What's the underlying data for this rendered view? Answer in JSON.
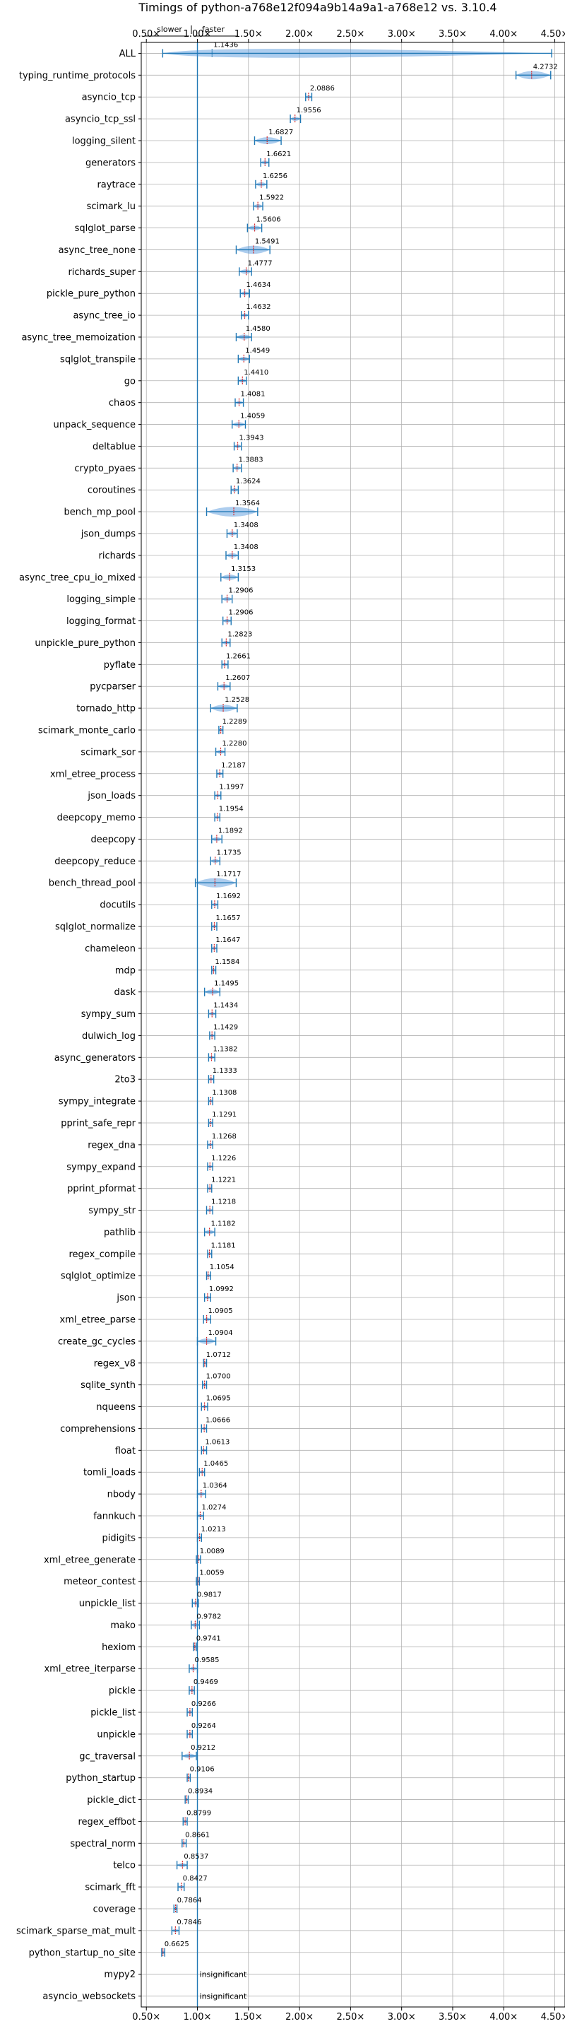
{
  "chart_data": {
    "type": "violin",
    "title": "Timings of python-a768e12f094a9b14a9a1-a768e12 vs. 3.10.4",
    "annotation_left": "slower",
    "annotation_right": "faster",
    "xlim": [
      0.45,
      4.6
    ],
    "x_ticks": [
      "0.50×",
      "1.00×",
      "1.50×",
      "2.00×",
      "2.50×",
      "3.00×",
      "3.50×",
      "4.00×",
      "4.50×"
    ],
    "grid": true,
    "colors": {
      "violin": "#4a90d9",
      "line": "#1f77b4",
      "median": "#d62728"
    },
    "benchmarks": [
      {
        "name": "ALL",
        "value": 1.1436,
        "label": "1.1436"
      },
      {
        "name": "typing_runtime_protocols",
        "value": 4.2732,
        "label": "4.2732"
      },
      {
        "name": "asyncio_tcp",
        "value": 2.0886,
        "label": "2.0886"
      },
      {
        "name": "asyncio_tcp_ssl",
        "value": 1.9556,
        "label": "1.9556"
      },
      {
        "name": "logging_silent",
        "value": 1.6827,
        "label": "1.6827"
      },
      {
        "name": "generators",
        "value": 1.6621,
        "label": "1.6621"
      },
      {
        "name": "raytrace",
        "value": 1.6256,
        "label": "1.6256"
      },
      {
        "name": "scimark_lu",
        "value": 1.5922,
        "label": "1.5922"
      },
      {
        "name": "sqlglot_parse",
        "value": 1.5606,
        "label": "1.5606"
      },
      {
        "name": "async_tree_none",
        "value": 1.5491,
        "label": "1.5491"
      },
      {
        "name": "richards_super",
        "value": 1.4777,
        "label": "1.4777"
      },
      {
        "name": "pickle_pure_python",
        "value": 1.4634,
        "label": "1.4634"
      },
      {
        "name": "async_tree_io",
        "value": 1.4632,
        "label": "1.4632"
      },
      {
        "name": "async_tree_memoization",
        "value": 1.458,
        "label": "1.4580"
      },
      {
        "name": "sqlglot_transpile",
        "value": 1.4549,
        "label": "1.4549"
      },
      {
        "name": "go",
        "value": 1.441,
        "label": "1.4410"
      },
      {
        "name": "chaos",
        "value": 1.4081,
        "label": "1.4081"
      },
      {
        "name": "unpack_sequence",
        "value": 1.4059,
        "label": "1.4059"
      },
      {
        "name": "deltablue",
        "value": 1.3943,
        "label": "1.3943"
      },
      {
        "name": "crypto_pyaes",
        "value": 1.3883,
        "label": "1.3883"
      },
      {
        "name": "coroutines",
        "value": 1.3624,
        "label": "1.3624"
      },
      {
        "name": "bench_mp_pool",
        "value": 1.3564,
        "label": "1.3564"
      },
      {
        "name": "json_dumps",
        "value": 1.3408,
        "label": "1.3408"
      },
      {
        "name": "richards",
        "value": 1.3408,
        "label": "1.3408"
      },
      {
        "name": "async_tree_cpu_io_mixed",
        "value": 1.3153,
        "label": "1.3153"
      },
      {
        "name": "logging_simple",
        "value": 1.2906,
        "label": "1.2906"
      },
      {
        "name": "logging_format",
        "value": 1.2906,
        "label": "1.2906"
      },
      {
        "name": "unpickle_pure_python",
        "value": 1.2823,
        "label": "1.2823"
      },
      {
        "name": "pyflate",
        "value": 1.2661,
        "label": "1.2661"
      },
      {
        "name": "pycparser",
        "value": 1.2607,
        "label": "1.2607"
      },
      {
        "name": "tornado_http",
        "value": 1.2528,
        "label": "1.2528"
      },
      {
        "name": "scimark_monte_carlo",
        "value": 1.2289,
        "label": "1.2289"
      },
      {
        "name": "scimark_sor",
        "value": 1.228,
        "label": "1.2280"
      },
      {
        "name": "xml_etree_process",
        "value": 1.2187,
        "label": "1.2187"
      },
      {
        "name": "json_loads",
        "value": 1.1997,
        "label": "1.1997"
      },
      {
        "name": "deepcopy_memo",
        "value": 1.1954,
        "label": "1.1954"
      },
      {
        "name": "deepcopy",
        "value": 1.1892,
        "label": "1.1892"
      },
      {
        "name": "deepcopy_reduce",
        "value": 1.1735,
        "label": "1.1735"
      },
      {
        "name": "bench_thread_pool",
        "value": 1.1717,
        "label": "1.1717"
      },
      {
        "name": "docutils",
        "value": 1.1692,
        "label": "1.1692"
      },
      {
        "name": "sqlglot_normalize",
        "value": 1.1657,
        "label": "1.1657"
      },
      {
        "name": "chameleon",
        "value": 1.1647,
        "label": "1.1647"
      },
      {
        "name": "mdp",
        "value": 1.1584,
        "label": "1.1584"
      },
      {
        "name": "dask",
        "value": 1.1495,
        "label": "1.1495"
      },
      {
        "name": "sympy_sum",
        "value": 1.1434,
        "label": "1.1434"
      },
      {
        "name": "dulwich_log",
        "value": 1.1429,
        "label": "1.1429"
      },
      {
        "name": "async_generators",
        "value": 1.1382,
        "label": "1.1382"
      },
      {
        "name": "2to3",
        "value": 1.1333,
        "label": "1.1333"
      },
      {
        "name": "sympy_integrate",
        "value": 1.1308,
        "label": "1.1308"
      },
      {
        "name": "pprint_safe_repr",
        "value": 1.1291,
        "label": "1.1291"
      },
      {
        "name": "regex_dna",
        "value": 1.1268,
        "label": "1.1268"
      },
      {
        "name": "sympy_expand",
        "value": 1.1226,
        "label": "1.1226"
      },
      {
        "name": "pprint_pformat",
        "value": 1.1221,
        "label": "1.1221"
      },
      {
        "name": "sympy_str",
        "value": 1.1218,
        "label": "1.1218"
      },
      {
        "name": "pathlib",
        "value": 1.1182,
        "label": "1.1182"
      },
      {
        "name": "regex_compile",
        "value": 1.1181,
        "label": "1.1181"
      },
      {
        "name": "sqlglot_optimize",
        "value": 1.1054,
        "label": "1.1054"
      },
      {
        "name": "json",
        "value": 1.0992,
        "label": "1.0992"
      },
      {
        "name": "xml_etree_parse",
        "value": 1.0905,
        "label": "1.0905"
      },
      {
        "name": "create_gc_cycles",
        "value": 1.0904,
        "label": "1.0904"
      },
      {
        "name": "regex_v8",
        "value": 1.0712,
        "label": "1.0712"
      },
      {
        "name": "sqlite_synth",
        "value": 1.07,
        "label": "1.0700"
      },
      {
        "name": "nqueens",
        "value": 1.0695,
        "label": "1.0695"
      },
      {
        "name": "comprehensions",
        "value": 1.0666,
        "label": "1.0666"
      },
      {
        "name": "float",
        "value": 1.0613,
        "label": "1.0613"
      },
      {
        "name": "tomli_loads",
        "value": 1.0465,
        "label": "1.0465"
      },
      {
        "name": "nbody",
        "value": 1.0364,
        "label": "1.0364"
      },
      {
        "name": "fannkuch",
        "value": 1.0274,
        "label": "1.0274"
      },
      {
        "name": "pidigits",
        "value": 1.0213,
        "label": "1.0213"
      },
      {
        "name": "xml_etree_generate",
        "value": 1.0089,
        "label": "1.0089"
      },
      {
        "name": "meteor_contest",
        "value": 1.0059,
        "label": "1.0059"
      },
      {
        "name": "unpickle_list",
        "value": 0.9817,
        "label": "0.9817"
      },
      {
        "name": "mako",
        "value": 0.9782,
        "label": "0.9782"
      },
      {
        "name": "hexiom",
        "value": 0.9741,
        "label": "0.9741"
      },
      {
        "name": "xml_etree_iterparse",
        "value": 0.9585,
        "label": "0.9585"
      },
      {
        "name": "pickle",
        "value": 0.9469,
        "label": "0.9469"
      },
      {
        "name": "pickle_list",
        "value": 0.9266,
        "label": "0.9266"
      },
      {
        "name": "unpickle",
        "value": 0.9264,
        "label": "0.9264"
      },
      {
        "name": "gc_traversal",
        "value": 0.9212,
        "label": "0.9212"
      },
      {
        "name": "python_startup",
        "value": 0.9106,
        "label": "0.9106"
      },
      {
        "name": "pickle_dict",
        "value": 0.8934,
        "label": "0.8934"
      },
      {
        "name": "regex_effbot",
        "value": 0.8799,
        "label": "0.8799"
      },
      {
        "name": "spectral_norm",
        "value": 0.8661,
        "label": "0.8661"
      },
      {
        "name": "telco",
        "value": 0.8537,
        "label": "0.8537"
      },
      {
        "name": "scimark_fft",
        "value": 0.8427,
        "label": "0.8427"
      },
      {
        "name": "coverage",
        "value": 0.7864,
        "label": "0.7864"
      },
      {
        "name": "scimark_sparse_mat_mult",
        "value": 0.7846,
        "label": "0.7846"
      },
      {
        "name": "python_startup_no_site",
        "value": 0.6625,
        "label": "0.6625"
      },
      {
        "name": "mypy2",
        "value": null,
        "label": "insignificant"
      },
      {
        "name": "asyncio_websockets",
        "value": null,
        "label": "insignificant"
      }
    ],
    "ranges": [
      [
        0.66,
        4.47
      ],
      [
        4.12,
        4.46
      ],
      [
        2.06,
        2.12
      ],
      [
        1.91,
        2.01
      ],
      [
        1.56,
        1.82
      ],
      [
        1.62,
        1.7
      ],
      [
        1.57,
        1.68
      ],
      [
        1.55,
        1.64
      ],
      [
        1.49,
        1.63
      ],
      [
        1.38,
        1.71
      ],
      [
        1.41,
        1.53
      ],
      [
        1.42,
        1.51
      ],
      [
        1.43,
        1.5
      ],
      [
        1.38,
        1.53
      ],
      [
        1.4,
        1.51
      ],
      [
        1.4,
        1.48
      ],
      [
        1.37,
        1.45
      ],
      [
        1.34,
        1.47
      ],
      [
        1.36,
        1.43
      ],
      [
        1.35,
        1.43
      ],
      [
        1.33,
        1.4
      ],
      [
        1.09,
        1.59
      ],
      [
        1.29,
        1.39
      ],
      [
        1.28,
        1.4
      ],
      [
        1.23,
        1.4
      ],
      [
        1.24,
        1.34
      ],
      [
        1.25,
        1.33
      ],
      [
        1.24,
        1.32
      ],
      [
        1.24,
        1.3
      ],
      [
        1.2,
        1.32
      ],
      [
        1.13,
        1.39
      ],
      [
        1.21,
        1.25
      ],
      [
        1.18,
        1.27
      ],
      [
        1.19,
        1.25
      ],
      [
        1.17,
        1.23
      ],
      [
        1.17,
        1.22
      ],
      [
        1.14,
        1.24
      ],
      [
        1.13,
        1.22
      ],
      [
        0.98,
        1.38
      ],
      [
        1.14,
        1.2
      ],
      [
        1.14,
        1.19
      ],
      [
        1.14,
        1.19
      ],
      [
        1.14,
        1.18
      ],
      [
        1.07,
        1.22
      ],
      [
        1.11,
        1.18
      ],
      [
        1.12,
        1.17
      ],
      [
        1.11,
        1.17
      ],
      [
        1.11,
        1.16
      ],
      [
        1.11,
        1.15
      ],
      [
        1.11,
        1.15
      ],
      [
        1.1,
        1.15
      ],
      [
        1.1,
        1.15
      ],
      [
        1.1,
        1.14
      ],
      [
        1.09,
        1.15
      ],
      [
        1.07,
        1.17
      ],
      [
        1.1,
        1.14
      ],
      [
        1.09,
        1.13
      ],
      [
        1.07,
        1.13
      ],
      [
        1.06,
        1.13
      ],
      [
        1.0,
        1.18
      ],
      [
        1.06,
        1.09
      ],
      [
        1.05,
        1.09
      ],
      [
        1.04,
        1.1
      ],
      [
        1.04,
        1.09
      ],
      [
        1.04,
        1.09
      ],
      [
        1.02,
        1.07
      ],
      [
        1.0,
        1.08
      ],
      [
        1.0,
        1.06
      ],
      [
        1.0,
        1.04
      ],
      [
        0.99,
        1.03
      ],
      [
        0.99,
        1.02
      ],
      [
        0.95,
        1.01
      ],
      [
        0.94,
        1.02
      ],
      [
        0.96,
        0.99
      ],
      [
        0.92,
        1.0
      ],
      [
        0.92,
        0.97
      ],
      [
        0.9,
        0.95
      ],
      [
        0.9,
        0.95
      ],
      [
        0.85,
        0.99
      ],
      [
        0.9,
        0.93
      ],
      [
        0.88,
        0.91
      ],
      [
        0.86,
        0.9
      ],
      [
        0.85,
        0.89
      ],
      [
        0.8,
        0.9
      ],
      [
        0.81,
        0.87
      ],
      [
        0.77,
        0.8
      ],
      [
        0.75,
        0.82
      ],
      [
        0.65,
        0.68
      ],
      null,
      null
    ]
  }
}
